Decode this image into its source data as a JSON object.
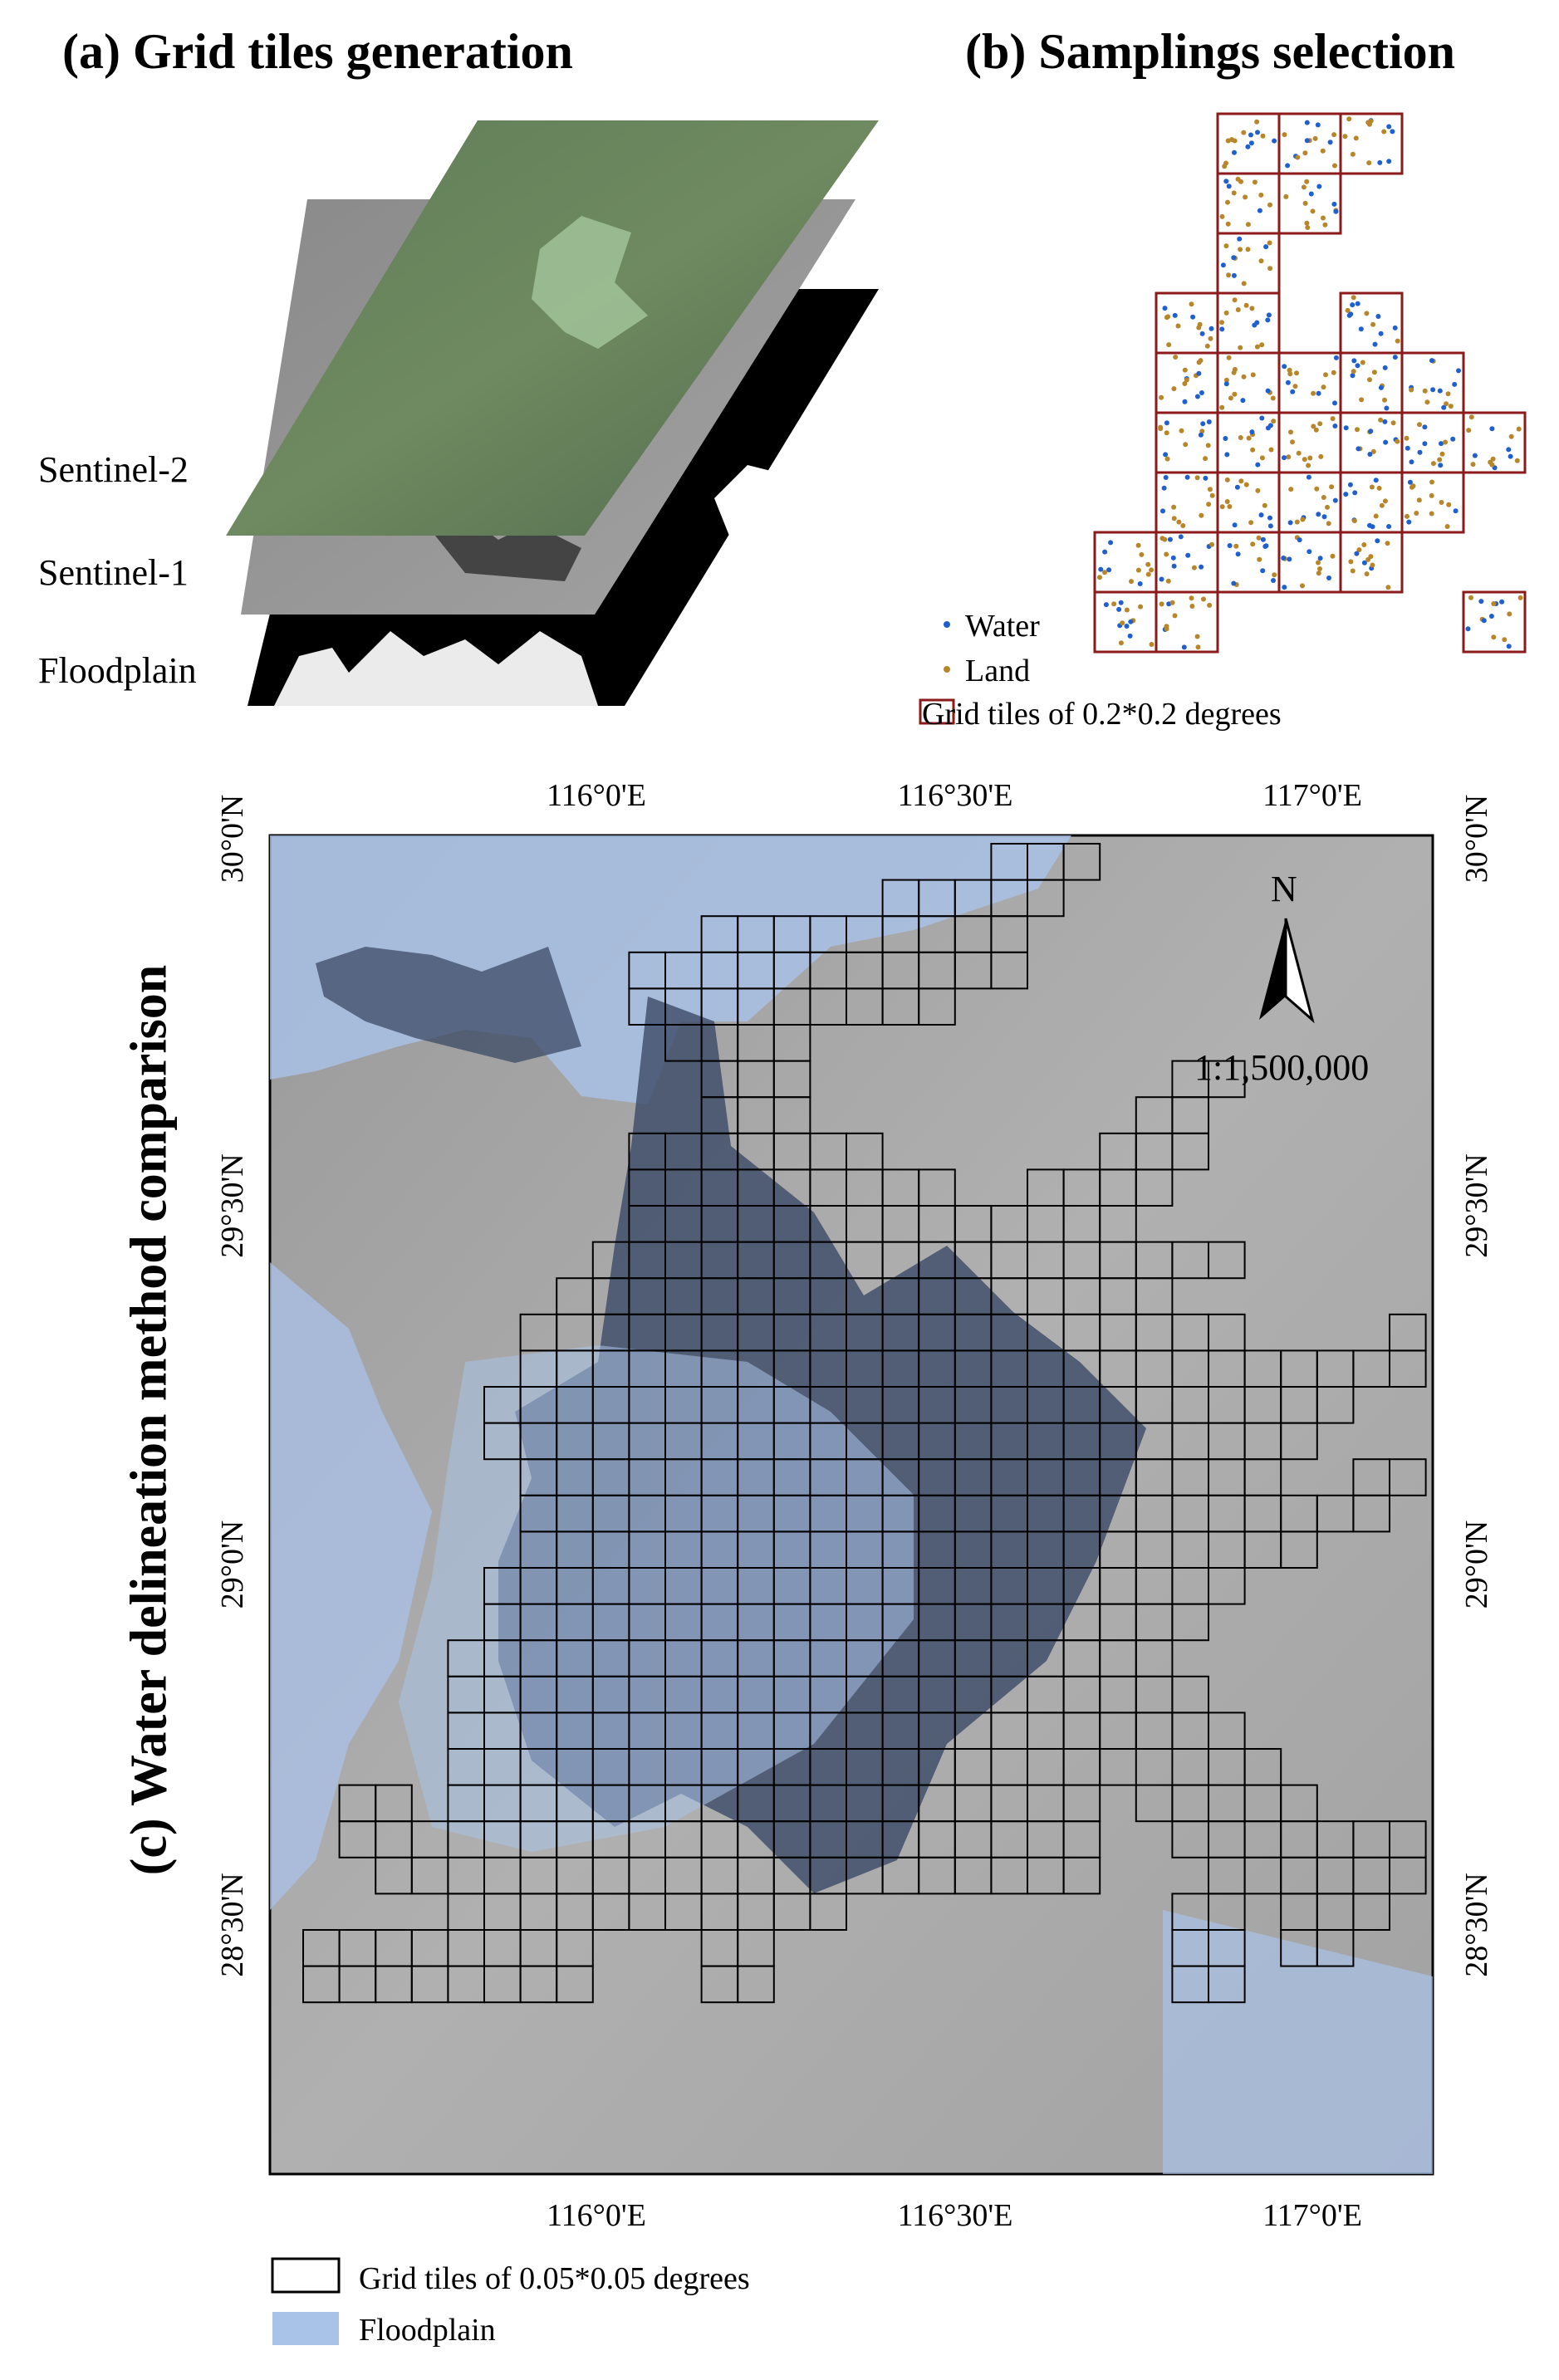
{
  "panels": {
    "a": {
      "title": "(a) Grid tiles generation",
      "layers": [
        "Sentinel-2",
        "Sentinel-1",
        "Floodplain"
      ]
    },
    "b": {
      "title": "(b) Samplings selection",
      "legend": {
        "water": "Water",
        "land": "Land",
        "tiles": "Grid tiles of 0.2*0.2 degrees"
      }
    },
    "c": {
      "title": "(c) Water delineation method comparison",
      "top_ticks": [
        "116°0'E",
        "116°30'E",
        "117°0'E"
      ],
      "bottom_ticks": [
        "116°0'E",
        "116°30'E",
        "117°0'E"
      ],
      "left_ticks": [
        "30°0'N",
        "29°30'N",
        "29°0'N",
        "28°30'N"
      ],
      "right_ticks": [
        "30°0'N",
        "29°30'N",
        "29°0'N",
        "28°30'N"
      ],
      "north_label": "N",
      "scale": "1:1,500,000",
      "legend": {
        "tiles": "Grid tiles of 0.05*0.05 degrees",
        "floodplain": "Floodplain"
      }
    }
  },
  "colors": {
    "water_dot": "#1f5fcf",
    "land_dot": "#b8862a",
    "coarse_tile": "#8b1a1a",
    "fine_tile": "#000000",
    "floodplain": "#a9c2e8",
    "lake": "#3b4a66"
  }
}
